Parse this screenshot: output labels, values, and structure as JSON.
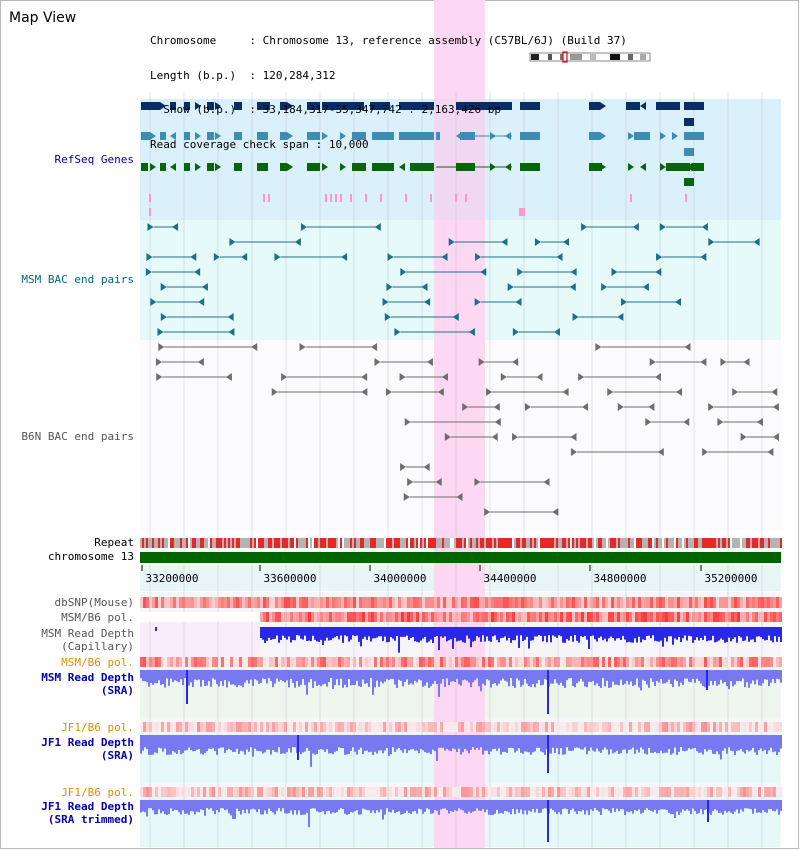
{
  "title": "Map View",
  "info": {
    "chromosome_key": "Chromosome     ",
    "chromosome_val": "Chromosome 13, reference assembly (C57BL/6J) (Build 37)",
    "length_key": "Length (b.p.)  ",
    "length_val": "120,284,312",
    "show_key": "  Show (b.p.)  ",
    "show_val": "33,184,317-35,347,742 : 2,163,426 bp",
    "coverage_key": "Read coverage check span",
    "coverage_val": "10,000"
  },
  "tracks": {
    "refseq": "RefSeq Genes",
    "msm_bac": "MSM BAC end pairs",
    "b6n_bac": "B6N BAC end pairs",
    "repeat": "Repeat",
    "chromosome": "chromosome 13",
    "dbsnp": "dbSNP(Mouse)",
    "msm_b6_pol_1": "MSM/B6 pol.",
    "msm_depth_cap_1": "MSM Read Depth",
    "msm_depth_cap_2": "(Capillary)",
    "msm_b6_pol_2": "MSM/B6 pol.",
    "msm_depth_sra_1": "MSM Read Depth",
    "msm_depth_sra_2": "(SRA)",
    "jf1_b6_pol_1": "JF1/B6 pol.",
    "jf1_depth_sra_1": "JF1 Read Depth",
    "jf1_depth_sra_2": "(SRA)",
    "jf1_b6_pol_2": "JF1/B6 pol.",
    "jf1_depth_trim_1": "JF1 Read Depth",
    "jf1_depth_trim_2": "(SRA trimmed)"
  },
  "axis": {
    "ticks": [
      "33200000",
      "33600000",
      "34000000",
      "34400000",
      "34800000",
      "35200000"
    ]
  },
  "colors": {
    "highlight": "#fcd8f2",
    "refseq_bg": "#daf0fa",
    "msm_bg": "#e6fafa",
    "gene_navy": "#0a2d64",
    "gene_steel": "#3c8cb4",
    "gene_green": "#0a640a",
    "pink_mark": "#ff96c8",
    "bac_teal": "#1e6e8c",
    "bac_gray": "#6e6e6e",
    "repeat_red": "#e62828",
    "chrom_green": "#006400",
    "depth_blue": "#2828e6",
    "depth_light": "#7878f0"
  }
}
